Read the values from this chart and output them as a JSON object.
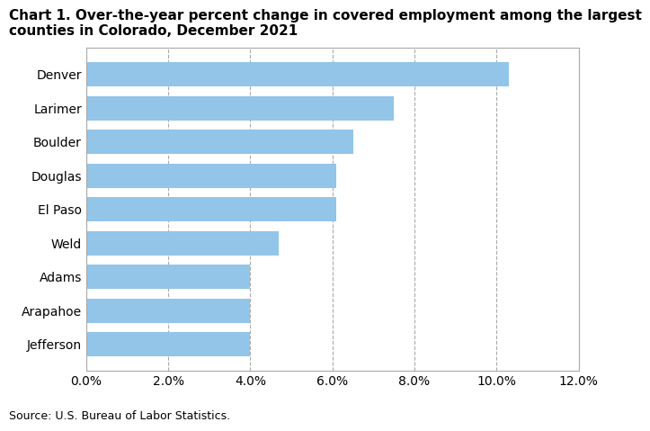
{
  "categories": [
    "Denver",
    "Larimer",
    "Boulder",
    "Douglas",
    "El Paso",
    "Weld",
    "Adams",
    "Arapahoe",
    "Jefferson"
  ],
  "values": [
    10.3,
    7.5,
    6.5,
    6.1,
    6.1,
    4.7,
    4.0,
    4.0,
    4.0
  ],
  "bar_color": "#92C5E8",
  "title_line1": "Chart 1. Over-the-year percent change in covered employment among the largest",
  "title_line2": "counties in Colorado, December 2021",
  "xlim": [
    0,
    12.0
  ],
  "xticks": [
    0.0,
    2.0,
    4.0,
    6.0,
    8.0,
    10.0,
    12.0
  ],
  "source": "Source: U.S. Bureau of Labor Statistics.",
  "bar_color_edge": "none",
  "grid_color": "#aaaaaa",
  "grid_style": "--",
  "background_color": "#ffffff",
  "title_fontsize": 11,
  "tick_fontsize": 10,
  "source_fontsize": 9,
  "bar_height": 0.72
}
